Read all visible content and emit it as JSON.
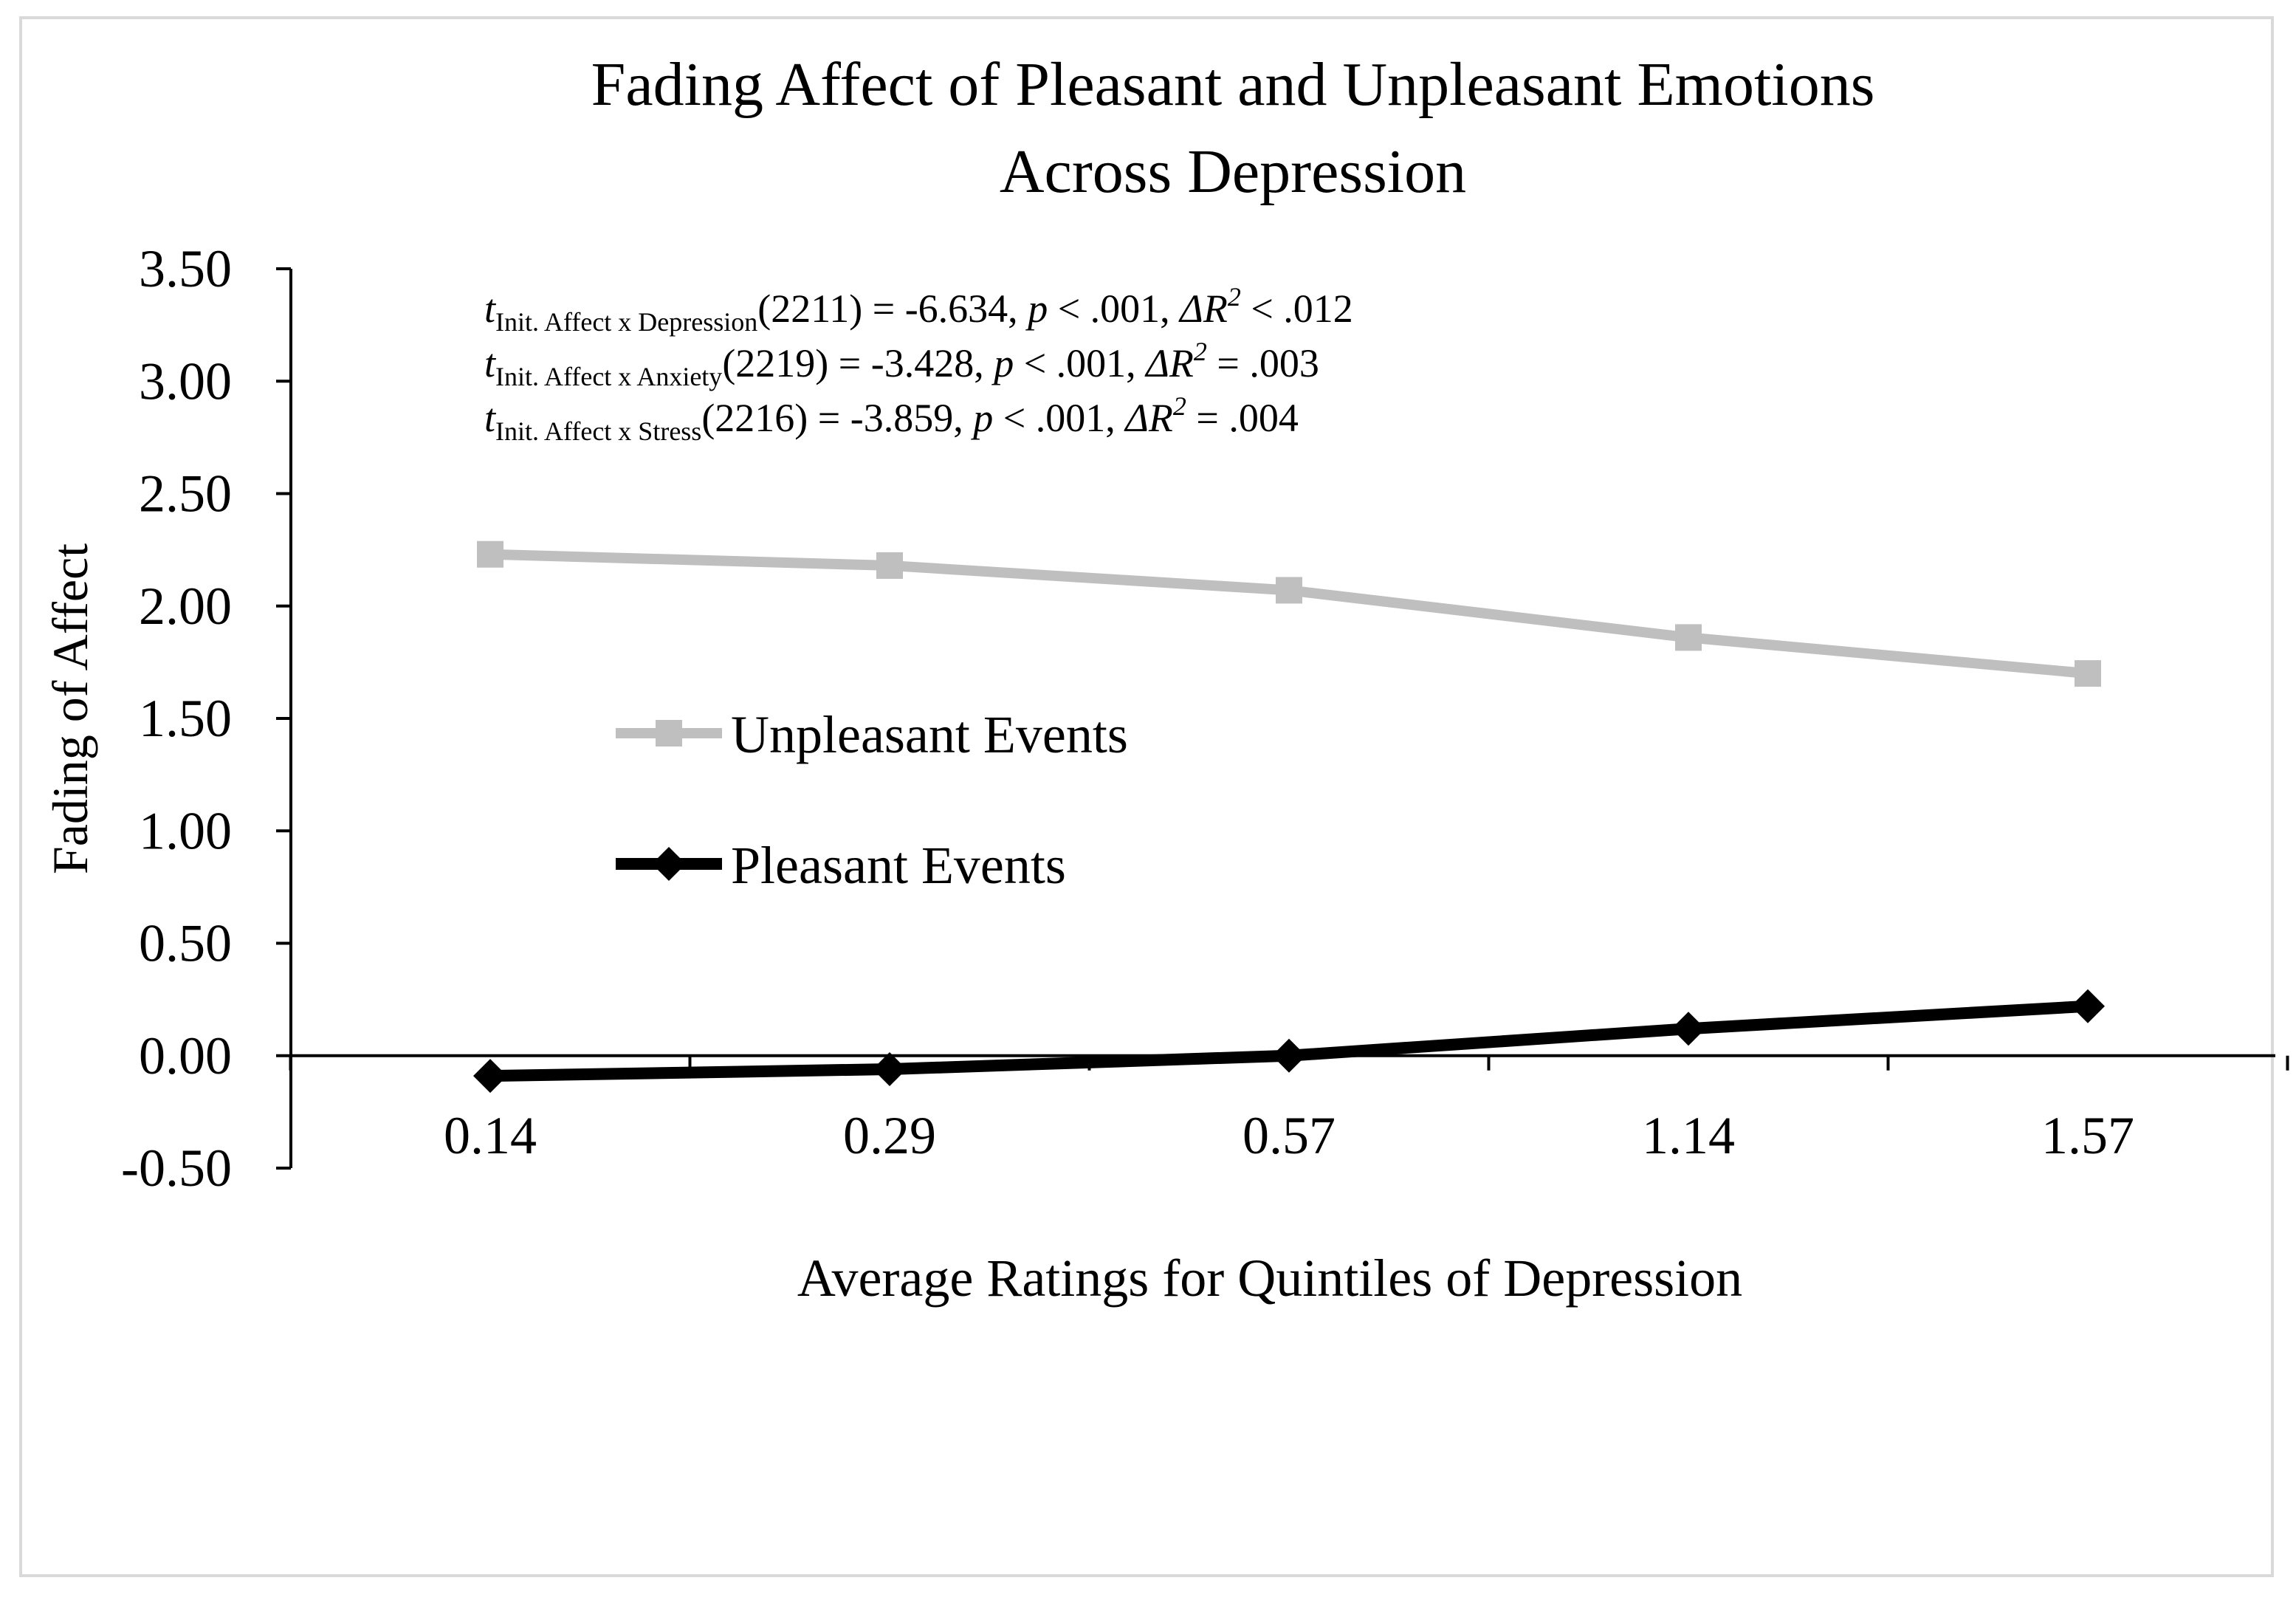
{
  "chart_data": {
    "type": "line",
    "title": "Fading Affect of Pleasant and Unpleasant Emotions",
    "title_line2": "Across Depression",
    "xlabel": "Average Ratings for Quintiles of Depression",
    "ylabel": "Fading of Affect",
    "categories": [
      "0.14",
      "0.29",
      "0.57",
      "1.14",
      "1.57"
    ],
    "ylim": [
      -0.5,
      3.5
    ],
    "yticks": [
      "3.50",
      "3.00",
      "2.50",
      "2.00",
      "1.50",
      "1.00",
      "0.50",
      "0.00",
      "-0.50"
    ],
    "ytick_values": [
      3.5,
      3.0,
      2.5,
      2.0,
      1.5,
      1.0,
      0.5,
      0.0,
      -0.5
    ],
    "series": [
      {
        "name": "Unpleasant Events",
        "values": [
          2.23,
          2.18,
          2.07,
          1.86,
          1.7
        ],
        "color": "#bfbfbf",
        "marker": "square"
      },
      {
        "name": "Pleasant Events",
        "values": [
          -0.09,
          -0.06,
          0.0,
          0.12,
          0.22
        ],
        "color": "#000000",
        "marker": "diamond"
      }
    ],
    "annotations": [
      {
        "sub": "Init. Affect x Depression",
        "df": "(2211) = -6.634, ",
        "p": "< .001, ",
        "r2": "< .012"
      },
      {
        "sub": "Init. Affect x Anxiety",
        "df": "(2219) = -3.428, ",
        "p": "< .001, ",
        "r2": "= .003"
      },
      {
        "sub": "Init. Affect x Stress",
        "df": "(2216) = -3.859, ",
        "p": "< .001, ",
        "r2": "= .004"
      }
    ],
    "annotation_parts": {
      "t": "t",
      "p": "p",
      "delta_r": "ΔR",
      "sup": "2"
    },
    "grid": false,
    "legend": "center-left"
  }
}
